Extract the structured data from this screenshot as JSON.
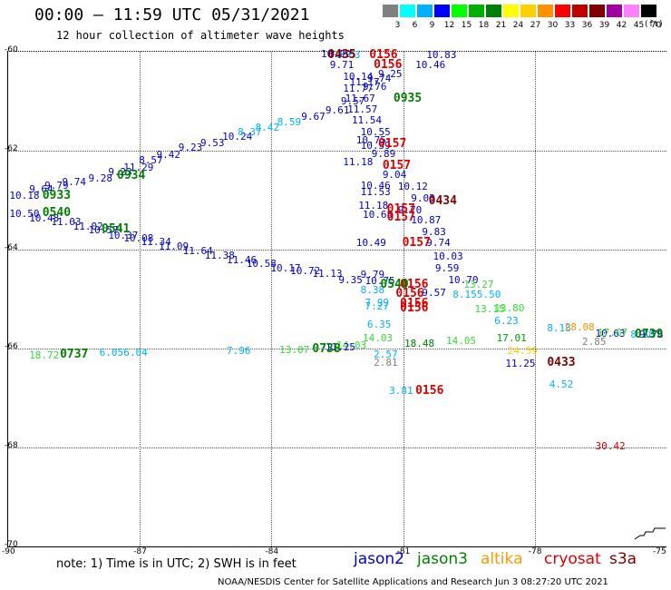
{
  "header": {
    "title": "00:00 – 11:59 UTC 05/31/2021",
    "subtitle": "12 hour collection of altimeter wave heights"
  },
  "legend": {
    "unit": "(ft)",
    "bins": [
      {
        "label": "3",
        "color": "#808080"
      },
      {
        "label": "6",
        "color": "#00ffff"
      },
      {
        "label": "9",
        "color": "#00b0ff"
      },
      {
        "label": "12",
        "color": "#0000ff"
      },
      {
        "label": "15",
        "color": "#00ff00"
      },
      {
        "label": "18",
        "color": "#00b000"
      },
      {
        "label": "21",
        "color": "#008000"
      },
      {
        "label": "24",
        "color": "#ffff00"
      },
      {
        "label": "27",
        "color": "#ffd000"
      },
      {
        "label": "30",
        "color": "#ff9000"
      },
      {
        "label": "33",
        "color": "#ff0000"
      },
      {
        "label": "36",
        "color": "#c00000"
      },
      {
        "label": "39",
        "color": "#800000"
      },
      {
        "label": "42",
        "color": "#a000a0"
      },
      {
        "label": "45",
        "color": "#ff80ff"
      },
      {
        "label": "70",
        "color": "#000000"
      }
    ]
  },
  "axes": {
    "lat_labels": [
      "-60",
      "-62",
      "-64",
      "-66",
      "-68",
      "-70"
    ],
    "lon_labels": [
      "-90",
      "-87",
      "-84",
      "-81",
      "-78",
      "-75"
    ]
  },
  "satellites": [
    {
      "name": "jason2",
      "color": "#0000cc"
    },
    {
      "name": "jason3",
      "color": "#008000"
    },
    {
      "name": "altika",
      "color": "#ff9900"
    },
    {
      "name": "cryosat",
      "color": "#dd0000"
    },
    {
      "name": "s3a",
      "color": "#800000"
    }
  ],
  "observations": [
    {
      "t": "10.18",
      "c": "#0000cc",
      "lon": -89.95,
      "lat": -62.92
    },
    {
      "t": "9.64",
      "c": "#0000cc",
      "lon": -89.5,
      "lat": -62.78
    },
    {
      "t": "9.79",
      "c": "#0000cc",
      "lon": -89.15,
      "lat": -62.72
    },
    {
      "t": "9.74",
      "c": "#0000cc",
      "lon": -88.75,
      "lat": -62.64
    },
    {
      "t": "9.28",
      "c": "#0000cc",
      "lon": -88.15,
      "lat": -62.56
    },
    {
      "t": "9.23",
      "c": "#0000cc",
      "lon": -87.7,
      "lat": -62.44
    },
    {
      "t": "11.29",
      "c": "#0000cc",
      "lon": -87.35,
      "lat": -62.34
    },
    {
      "t": "8.57",
      "c": "#0000cc",
      "lon": -87.0,
      "lat": -62.2
    },
    {
      "t": "9.42",
      "c": "#0000cc",
      "lon": -86.6,
      "lat": -62.1
    },
    {
      "t": "9.23",
      "c": "#0000cc",
      "lon": -86.1,
      "lat": -61.95
    },
    {
      "t": "9.53",
      "c": "#0000cc",
      "lon": -85.6,
      "lat": -61.86
    },
    {
      "t": "10.24",
      "c": "#0000cc",
      "lon": -85.1,
      "lat": -61.73
    },
    {
      "t": "8.37",
      "c": "#00b0ff",
      "lon": -84.75,
      "lat": -61.63
    },
    {
      "t": "8.42",
      "c": "#00b0ff",
      "lon": -84.35,
      "lat": -61.55
    },
    {
      "t": "8.59",
      "c": "#00b0ff",
      "lon": -83.85,
      "lat": -61.43
    },
    {
      "t": "9.67",
      "c": "#0000cc",
      "lon": -83.3,
      "lat": -61.32
    },
    {
      "t": "9.61",
      "c": "#0000cc",
      "lon": -82.75,
      "lat": -61.2
    },
    {
      "t": "9.57",
      "c": "#0000cc",
      "lon": -82.4,
      "lat": -61.0
    },
    {
      "t": "10.99",
      "c": "#0000cc",
      "lon": -82.85,
      "lat": -60.05
    },
    {
      "t": "9.71",
      "c": "#0000cc",
      "lon": -82.65,
      "lat": -60.28
    },
    {
      "t": "10.14",
      "c": "#0000cc",
      "lon": -82.35,
      "lat": -60.52
    },
    {
      "t": "11.17",
      "c": "#0000cc",
      "lon": -82.2,
      "lat": -60.62
    },
    {
      "t": "11.77",
      "c": "#0000cc",
      "lon": -82.35,
      "lat": -60.75
    },
    {
      "t": "11.67",
      "c": "#0000cc",
      "lon": -82.3,
      "lat": -60.95
    },
    {
      "t": "11.57",
      "c": "#0000cc",
      "lon": -82.25,
      "lat": -61.18
    },
    {
      "t": "11.54",
      "c": "#0000cc",
      "lon": -82.15,
      "lat": -61.4
    },
    {
      "t": "10.55",
      "c": "#0000cc",
      "lon": -81.95,
      "lat": -61.63
    },
    {
      "t": "10.75",
      "c": "#0000cc",
      "lon": -82.05,
      "lat": -61.8
    },
    {
      "t": "10.59",
      "c": "#0000cc",
      "lon": -81.95,
      "lat": -61.9
    },
    {
      "t": "9.89",
      "c": "#0000cc",
      "lon": -81.7,
      "lat": -62.08
    },
    {
      "t": "11.18",
      "c": "#0000cc",
      "lon": -82.35,
      "lat": -62.24
    },
    {
      "t": "9.04",
      "c": "#0000cc",
      "lon": -81.45,
      "lat": -62.5
    },
    {
      "t": "10.46",
      "c": "#0000cc",
      "lon": -81.95,
      "lat": -62.72
    },
    {
      "t": "10.12",
      "c": "#0000cc",
      "lon": -81.1,
      "lat": -62.74
    },
    {
      "t": "11.53",
      "c": "#0000cc",
      "lon": -81.95,
      "lat": -62.84
    },
    {
      "t": "9.03",
      "c": "#0000cc",
      "lon": -80.8,
      "lat": -62.98
    },
    {
      "t": "11.18",
      "c": "#0000cc",
      "lon": -82.0,
      "lat": -63.12
    },
    {
      "t": "9.70",
      "c": "#0000cc",
      "lon": -81.1,
      "lat": -63.22
    },
    {
      "t": "10.68",
      "c": "#0000cc",
      "lon": -81.9,
      "lat": -63.3
    },
    {
      "t": "10.87",
      "c": "#0000cc",
      "lon": -80.8,
      "lat": -63.42
    },
    {
      "t": "9.83",
      "c": "#0000cc",
      "lon": -80.55,
      "lat": -63.66
    },
    {
      "t": "10.49",
      "c": "#0000cc",
      "lon": -82.05,
      "lat": -63.88
    },
    {
      "t": "9.74",
      "c": "#0000cc",
      "lon": -80.45,
      "lat": -63.88
    },
    {
      "t": "10.03",
      "c": "#0000cc",
      "lon": -80.3,
      "lat": -64.15
    },
    {
      "t": "9.59",
      "c": "#0000cc",
      "lon": -80.25,
      "lat": -64.38
    },
    {
      "t": "10.70",
      "c": "#0000cc",
      "lon": -79.95,
      "lat": -64.62
    },
    {
      "t": "10.50",
      "c": "#0000cc",
      "lon": -89.95,
      "lat": -63.28
    },
    {
      "t": "10.48",
      "c": "#0000cc",
      "lon": -89.5,
      "lat": -63.38
    },
    {
      "t": "11.03",
      "c": "#0000cc",
      "lon": -89.0,
      "lat": -63.45
    },
    {
      "t": "11.02",
      "c": "#0000cc",
      "lon": -88.5,
      "lat": -63.55
    },
    {
      "t": "10.57",
      "c": "#0000cc",
      "lon": -88.15,
      "lat": -63.62
    },
    {
      "t": "10.37",
      "c": "#0000cc",
      "lon": -87.7,
      "lat": -63.72
    },
    {
      "t": "10.08",
      "c": "#0000cc",
      "lon": -87.35,
      "lat": -63.78
    },
    {
      "t": "11.34",
      "c": "#0000cc",
      "lon": -86.95,
      "lat": -63.86
    },
    {
      "t": "11.09",
      "c": "#0000cc",
      "lon": -86.55,
      "lat": -63.94
    },
    {
      "t": "11.64",
      "c": "#0000cc",
      "lon": -86.0,
      "lat": -64.04
    },
    {
      "t": "11.38",
      "c": "#0000cc",
      "lon": -85.5,
      "lat": -64.12
    },
    {
      "t": "11.46",
      "c": "#0000cc",
      "lon": -85.0,
      "lat": -64.22
    },
    {
      "t": "10.58",
      "c": "#0000cc",
      "lon": -84.55,
      "lat": -64.3
    },
    {
      "t": "10.17",
      "c": "#0000cc",
      "lon": -84.0,
      "lat": -64.38
    },
    {
      "t": "10.72",
      "c": "#0000cc",
      "lon": -83.55,
      "lat": -64.44
    },
    {
      "t": "11.13",
      "c": "#0000cc",
      "lon": -83.05,
      "lat": -64.5
    },
    {
      "t": "9.35",
      "c": "#0000cc",
      "lon": -82.45,
      "lat": -64.62
    },
    {
      "t": "9.79",
      "c": "#0000cc",
      "lon": -81.95,
      "lat": -64.52
    },
    {
      "t": "10.75",
      "c": "#0000cc",
      "lon": -81.85,
      "lat": -64.65
    },
    {
      "t": "9.57",
      "c": "#0000cc",
      "lon": -80.55,
      "lat": -64.88
    },
    {
      "t": "10.83",
      "c": "#0000cc",
      "lon": -80.45,
      "lat": -60.08
    },
    {
      "t": "10.46",
      "c": "#0000cc",
      "lon": -80.7,
      "lat": -60.28
    },
    {
      "t": "9.25",
      "c": "#0000cc",
      "lon": -81.55,
      "lat": -60.45
    },
    {
      "t": "9.74",
      "c": "#0000cc",
      "lon": -81.8,
      "lat": -60.55
    },
    {
      "t": "9.76",
      "c": "#0000cc",
      "lon": -81.9,
      "lat": -60.72
    },
    {
      "t": "11.25",
      "c": "#0000cc",
      "lon": -78.65,
      "lat": -66.32
    },
    {
      "t": "10.63",
      "c": "#0000cc",
      "lon": -76.6,
      "lat": -65.7
    },
    {
      "t": "8.38",
      "c": "#00b0ff",
      "lon": -81.95,
      "lat": -64.82
    },
    {
      "t": "7.99",
      "c": "#00b0ff",
      "lon": -81.85,
      "lat": -65.08
    },
    {
      "t": "7.27",
      "c": "#00b0ff",
      "lon": -81.85,
      "lat": -65.15
    },
    {
      "t": "6.35",
      "c": "#00b0ff",
      "lon": -81.8,
      "lat": -65.52
    },
    {
      "t": "2.57",
      "c": "#00b0ff",
      "lon": -81.65,
      "lat": -66.12
    },
    {
      "t": "3.81",
      "c": "#00b0ff",
      "lon": -81.3,
      "lat": -66.86
    },
    {
      "t": "8.15",
      "c": "#00b0ff",
      "lon": -79.85,
      "lat": -64.92
    },
    {
      "t": "5.50",
      "c": "#00b0ff",
      "lon": -79.3,
      "lat": -64.92
    },
    {
      "t": "6.23",
      "c": "#00b0ff",
      "lon": -78.9,
      "lat": -65.45
    },
    {
      "t": "8.18",
      "c": "#00b0ff",
      "lon": -77.7,
      "lat": -65.6
    },
    {
      "t": "4.52",
      "c": "#00b0ff",
      "lon": -77.65,
      "lat": -66.74
    },
    {
      "t": "7.96",
      "c": "#00b0ff",
      "lon": -85.0,
      "lat": -66.05
    },
    {
      "t": "6.05",
      "c": "#00b0ff",
      "lon": -87.9,
      "lat": -66.1
    },
    {
      "t": "6.04",
      "c": "#00b0ff",
      "lon": -87.35,
      "lat": -66.1
    },
    {
      "t": "8.58",
      "c": "#00b0ff",
      "lon": -75.8,
      "lat": -65.72
    },
    {
      "t": "8.03",
      "c": "#00b0ff",
      "lon": -82.5,
      "lat": -60.08
    },
    {
      "t": "13.27",
      "c": "#33dd33",
      "lon": -79.6,
      "lat": -64.72
    },
    {
      "t": "13.15",
      "c": "#33dd33",
      "lon": -79.35,
      "lat": -65.22
    },
    {
      "t": "13.80",
      "c": "#33dd33",
      "lon": -78.9,
      "lat": -65.2
    },
    {
      "t": "14.05",
      "c": "#33dd33",
      "lon": -80.0,
      "lat": -65.85
    },
    {
      "t": "17.01",
      "c": "#00a000",
      "lon": -78.85,
      "lat": -65.8
    },
    {
      "t": "18.48",
      "c": "#008000",
      "lon": -80.95,
      "lat": -65.9
    },
    {
      "t": "17.67",
      "c": "#33dd33",
      "lon": -76.55,
      "lat": -65.68
    },
    {
      "t": "14.03",
      "c": "#33dd33",
      "lon": -81.9,
      "lat": -65.8
    },
    {
      "t": "14.03",
      "c": "#33dd33",
      "lon": -82.5,
      "lat": -65.94
    },
    {
      "t": "13.07",
      "c": "#33dd33",
      "lon": -83.8,
      "lat": -66.03
    },
    {
      "t": "18.72",
      "c": "#33dd33",
      "lon": -89.5,
      "lat": -66.14
    },
    {
      "t": "11.25",
      "c": "#0000cc",
      "lon": -82.75,
      "lat": -65.98
    },
    {
      "t": "2.81",
      "c": "#808080",
      "lon": -81.65,
      "lat": -66.3
    },
    {
      "t": "2.85",
      "c": "#808080",
      "lon": -76.9,
      "lat": -65.88
    },
    {
      "t": "24.59",
      "c": "#ffd000",
      "lon": -78.6,
      "lat": -66.05
    },
    {
      "t": "28.08",
      "c": "#ff9000",
      "lon": -77.3,
      "lat": -65.58
    },
    {
      "t": "30.42",
      "c": "#dd0000",
      "lon": -76.6,
      "lat": -67.98
    },
    {
      "t": "9.78",
      "c": "#0000cc",
      "lon": -75.6,
      "lat": -65.72
    }
  ],
  "time_labels": [
    {
      "t": "0435",
      "c": "#800000",
      "lon": -82.7,
      "lat": -60.08
    },
    {
      "t": "0156",
      "c": "#dd0000",
      "lon": -81.75,
      "lat": -60.08
    },
    {
      "t": "0156",
      "c": "#dd0000",
      "lon": -81.65,
      "lat": -60.28
    },
    {
      "t": "0935",
      "c": "#008000",
      "lon": -81.2,
      "lat": -60.95
    },
    {
      "t": "0157",
      "c": "#dd0000",
      "lon": -81.55,
      "lat": -61.88
    },
    {
      "t": "0157",
      "c": "#dd0000",
      "lon": -81.45,
      "lat": -62.32
    },
    {
      "t": "0434",
      "c": "#800000",
      "lon": -80.4,
      "lat": -63.03
    },
    {
      "t": "0157",
      "c": "#dd0000",
      "lon": -81.35,
      "lat": -63.2
    },
    {
      "t": "0157",
      "c": "#dd0000",
      "lon": -81.35,
      "lat": -63.36
    },
    {
      "t": "0157",
      "c": "#dd0000",
      "lon": -81.0,
      "lat": -63.88
    },
    {
      "t": "0933",
      "c": "#008000",
      "lon": -89.2,
      "lat": -62.92
    },
    {
      "t": "0934",
      "c": "#008000",
      "lon": -87.5,
      "lat": -62.52
    },
    {
      "t": "0540",
      "c": "#008000",
      "lon": -89.2,
      "lat": -63.26
    },
    {
      "t": "0541",
      "c": "#008000",
      "lon": -87.85,
      "lat": -63.6
    },
    {
      "t": "0156",
      "c": "#dd0000",
      "lon": -81.05,
      "lat": -64.72
    },
    {
      "t": "0156",
      "c": "#dd0000",
      "lon": -81.15,
      "lat": -64.9
    },
    {
      "t": "0156",
      "c": "#dd0000",
      "lon": -81.05,
      "lat": -65.1
    },
    {
      "t": "0156",
      "c": "#dd0000",
      "lon": -81.05,
      "lat": -65.2
    },
    {
      "t": "0156",
      "c": "#dd0000",
      "lon": -80.7,
      "lat": -66.86
    },
    {
      "t": "0433",
      "c": "#800000",
      "lon": -77.7,
      "lat": -66.3
    },
    {
      "t": "0738",
      "c": "#008000",
      "lon": -83.05,
      "lat": -66.02
    },
    {
      "t": "0737",
      "c": "#008000",
      "lon": -88.8,
      "lat": -66.12
    },
    {
      "t": "0739",
      "c": "#008000",
      "lon": -75.45,
      "lat": -65.72
    },
    {
      "t": "0540",
      "c": "#008000",
      "lon": -81.5,
      "lat": -64.72
    }
  ],
  "note": "note: 1) Time is in UTC; 2) SWH is in feet",
  "credit": "NOAA/NESDIS Center for Satellite Applications and Research    Jun  3 08:27:20 UTC 2021"
}
